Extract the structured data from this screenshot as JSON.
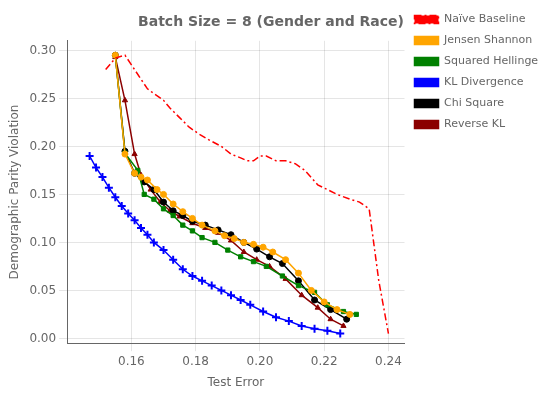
{
  "chart_data": {
    "type": "line",
    "title": "Batch Size = 8 (Gender and Race)",
    "xlabel": "Test Error",
    "ylabel": "Demographic Parity Violation",
    "xlim": [
      0.14,
      0.245
    ],
    "ylim": [
      -0.005,
      0.31
    ],
    "xticks": [
      0.16,
      0.18,
      {
        "value": 0.2,
        "label": "0.20"
      },
      0.22,
      0.24
    ],
    "yticks": [
      {
        "value": 0.0,
        "label": "0.00"
      },
      0.05,
      {
        "value": 0.1,
        "label": "0.10"
      },
      0.15,
      {
        "value": 0.2,
        "label": "0.20"
      },
      0.25,
      {
        "value": 0.3,
        "label": "0.30"
      }
    ],
    "grid": true,
    "legend": "upper right",
    "series": [
      {
        "name": "Naïve Baseline",
        "color": "#ff0000",
        "line_style": "dashdot",
        "x": [
          0.152,
          0.155,
          0.158,
          0.161,
          0.163,
          0.165,
          0.167,
          0.17,
          0.172,
          0.175,
          0.178,
          0.181,
          0.184,
          0.188,
          0.191,
          0.194,
          0.196,
          0.198,
          0.2,
          0.202,
          0.205,
          0.208,
          0.211,
          0.214,
          0.218,
          0.221,
          0.224,
          0.228,
          0.231,
          0.234,
          0.237,
          0.24
        ],
        "values": [
          0.28,
          0.292,
          0.295,
          0.28,
          0.27,
          0.26,
          0.255,
          0.248,
          0.24,
          0.23,
          0.22,
          0.213,
          0.207,
          0.2,
          0.192,
          0.188,
          0.185,
          0.185,
          0.19,
          0.19,
          0.185,
          0.185,
          0.182,
          0.175,
          0.16,
          0.155,
          0.15,
          0.145,
          0.142,
          0.135,
          0.06,
          0.005
        ]
      },
      {
        "name": "Jensen Shannon",
        "color": "#ffa500",
        "line_style": "solid",
        "marker": "circle",
        "x": [
          0.155,
          0.158,
          0.161,
          0.163,
          0.165,
          0.168,
          0.17,
          0.173,
          0.176,
          0.179,
          0.182,
          0.186,
          0.189,
          0.192,
          0.195,
          0.198,
          0.201,
          0.204,
          0.208,
          0.212,
          0.216,
          0.22,
          0.224,
          0.228
        ],
        "values": [
          0.295,
          0.192,
          0.172,
          0.168,
          0.165,
          0.155,
          0.15,
          0.14,
          0.132,
          0.125,
          0.118,
          0.112,
          0.107,
          0.104,
          0.1,
          0.098,
          0.095,
          0.09,
          0.082,
          0.068,
          0.05,
          0.038,
          0.03,
          0.025
        ]
      },
      {
        "name": "Squared Hellinger",
        "color": "#008000",
        "line_style": "solid",
        "marker": "square",
        "x": [
          0.155,
          0.158,
          0.162,
          0.164,
          0.167,
          0.17,
          0.173,
          0.176,
          0.179,
          0.182,
          0.186,
          0.19,
          0.194,
          0.198,
          0.202,
          0.207,
          0.212,
          0.217,
          0.221,
          0.226,
          0.23
        ],
        "values": [
          0.295,
          0.193,
          0.175,
          0.15,
          0.145,
          0.135,
          0.128,
          0.118,
          0.112,
          0.105,
          0.1,
          0.092,
          0.085,
          0.08,
          0.075,
          0.065,
          0.055,
          0.048,
          0.035,
          0.028,
          0.025
        ]
      },
      {
        "name": "KL Divergence",
        "color": "#0000ff",
        "line_style": "solid",
        "marker": "plus",
        "x": [
          0.147,
          0.149,
          0.151,
          0.153,
          0.155,
          0.157,
          0.159,
          0.161,
          0.163,
          0.165,
          0.167,
          0.17,
          0.173,
          0.176,
          0.179,
          0.182,
          0.185,
          0.188,
          0.191,
          0.194,
          0.197,
          0.201,
          0.205,
          0.209,
          0.213,
          0.217,
          0.221,
          0.225
        ],
        "values": [
          0.19,
          0.178,
          0.168,
          0.157,
          0.147,
          0.138,
          0.13,
          0.123,
          0.115,
          0.108,
          0.1,
          0.092,
          0.082,
          0.072,
          0.065,
          0.06,
          0.055,
          0.05,
          0.045,
          0.04,
          0.035,
          0.028,
          0.022,
          0.018,
          0.013,
          0.01,
          0.008,
          0.005
        ]
      },
      {
        "name": "Chi Square",
        "color": "#000000",
        "line_style": "solid",
        "marker": "circle",
        "x": [
          0.155,
          0.158,
          0.161,
          0.164,
          0.167,
          0.17,
          0.173,
          0.176,
          0.179,
          0.183,
          0.187,
          0.191,
          0.195,
          0.199,
          0.203,
          0.207,
          0.212,
          0.217,
          0.222,
          0.227
        ],
        "values": [
          0.295,
          0.195,
          0.172,
          0.163,
          0.155,
          0.142,
          0.133,
          0.128,
          0.122,
          0.118,
          0.113,
          0.108,
          0.1,
          0.093,
          0.085,
          0.078,
          0.06,
          0.04,
          0.03,
          0.02
        ]
      },
      {
        "name": "Reverse KL",
        "color": "#8b0000",
        "line_style": "solid",
        "marker": "triangle",
        "x": [
          0.155,
          0.158,
          0.161,
          0.163,
          0.166,
          0.169,
          0.172,
          0.175,
          0.179,
          0.183,
          0.187,
          0.191,
          0.195,
          0.199,
          0.203,
          0.208,
          0.213,
          0.218,
          0.222,
          0.226
        ],
        "values": [
          0.293,
          0.248,
          0.192,
          0.17,
          0.155,
          0.142,
          0.133,
          0.127,
          0.12,
          0.115,
          0.11,
          0.102,
          0.09,
          0.082,
          0.075,
          0.062,
          0.045,
          0.032,
          0.02,
          0.013
        ]
      }
    ]
  }
}
